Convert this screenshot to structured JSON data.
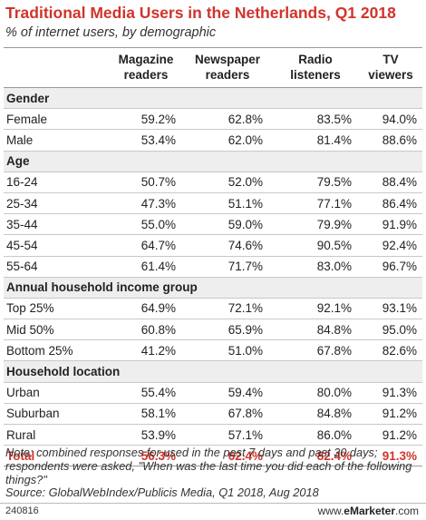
{
  "title": "Traditional Media Users in the Netherlands, Q1 2018",
  "subtitle": "% of internet users, by demographic",
  "columns": [
    [
      "Magazine",
      "readers"
    ],
    [
      "Newspaper",
      "readers"
    ],
    [
      "Radio",
      "listeners"
    ],
    [
      "TV",
      "viewers"
    ]
  ],
  "sections": [
    {
      "heading": "Gender",
      "rows": [
        {
          "label": "Female",
          "values": [
            "59.2%",
            "62.8%",
            "83.5%",
            "94.0%"
          ]
        },
        {
          "label": "Male",
          "values": [
            "53.4%",
            "62.0%",
            "81.4%",
            "88.6%"
          ]
        }
      ]
    },
    {
      "heading": "Age",
      "rows": [
        {
          "label": "16-24",
          "values": [
            "50.7%",
            "52.0%",
            "79.5%",
            "88.4%"
          ]
        },
        {
          "label": "25-34",
          "values": [
            "47.3%",
            "51.1%",
            "77.1%",
            "86.4%"
          ]
        },
        {
          "label": "35-44",
          "values": [
            "55.0%",
            "59.0%",
            "79.9%",
            "91.9%"
          ]
        },
        {
          "label": "45-54",
          "values": [
            "64.7%",
            "74.6%",
            "90.5%",
            "92.4%"
          ]
        },
        {
          "label": "55-64",
          "values": [
            "61.4%",
            "71.7%",
            "83.0%",
            "96.7%"
          ]
        }
      ]
    },
    {
      "heading": "Annual household income group",
      "rows": [
        {
          "label": "Top 25%",
          "values": [
            "64.9%",
            "72.1%",
            "92.1%",
            "93.1%"
          ]
        },
        {
          "label": "Mid 50%",
          "values": [
            "60.8%",
            "65.9%",
            "84.8%",
            "95.0%"
          ]
        },
        {
          "label": "Bottom 25%",
          "values": [
            "41.2%",
            "51.0%",
            "67.8%",
            "82.6%"
          ]
        }
      ]
    },
    {
      "heading": "Household location",
      "rows": [
        {
          "label": "Urban",
          "values": [
            "55.4%",
            "59.4%",
            "80.0%",
            "91.3%"
          ]
        },
        {
          "label": "Suburban",
          "values": [
            "58.1%",
            "67.8%",
            "84.8%",
            "91.2%"
          ]
        },
        {
          "label": "Rural",
          "values": [
            "53.9%",
            "57.1%",
            "86.0%",
            "91.2%"
          ]
        }
      ]
    }
  ],
  "total": {
    "label": "Total",
    "values": [
      "56.3%",
      "62.4%",
      "82.4%",
      "91.3%"
    ]
  },
  "note": "Note: combined responses for used in the past 7 days and past 30 days; respondents were asked, \"When was the last time you did each of the following things?\"",
  "source": "Source: GlobalWebIndex/Publicis Media, Q1 2018, Aug 2018",
  "chart_id": "240816",
  "brand": {
    "prefix": "www.",
    "name": "eMarketer",
    "suffix": ".com"
  },
  "colors": {
    "accent": "#d0342c",
    "section_bg": "#eeeeee",
    "text": "#222222"
  },
  "chart_data": {
    "type": "table",
    "title": "Traditional Media Users in the Netherlands, Q1 2018",
    "subtitle": "% of internet users, by demographic",
    "columns": [
      "Magazine readers",
      "Newspaper readers",
      "Radio listeners",
      "TV viewers"
    ],
    "rows": [
      {
        "group": "Gender",
        "label": "Female",
        "values": [
          59.2,
          62.8,
          83.5,
          94.0
        ]
      },
      {
        "group": "Gender",
        "label": "Male",
        "values": [
          53.4,
          62.0,
          81.4,
          88.6
        ]
      },
      {
        "group": "Age",
        "label": "16-24",
        "values": [
          50.7,
          52.0,
          79.5,
          88.4
        ]
      },
      {
        "group": "Age",
        "label": "25-34",
        "values": [
          47.3,
          51.1,
          77.1,
          86.4
        ]
      },
      {
        "group": "Age",
        "label": "35-44",
        "values": [
          55.0,
          59.0,
          79.9,
          91.9
        ]
      },
      {
        "group": "Age",
        "label": "45-54",
        "values": [
          64.7,
          74.6,
          90.5,
          92.4
        ]
      },
      {
        "group": "Age",
        "label": "55-64",
        "values": [
          61.4,
          71.7,
          83.0,
          96.7
        ]
      },
      {
        "group": "Annual household income group",
        "label": "Top 25%",
        "values": [
          64.9,
          72.1,
          92.1,
          93.1
        ]
      },
      {
        "group": "Annual household income group",
        "label": "Mid 50%",
        "values": [
          60.8,
          65.9,
          84.8,
          95.0
        ]
      },
      {
        "group": "Annual household income group",
        "label": "Bottom 25%",
        "values": [
          41.2,
          51.0,
          67.8,
          82.6
        ]
      },
      {
        "group": "Household location",
        "label": "Urban",
        "values": [
          55.4,
          59.4,
          80.0,
          91.3
        ]
      },
      {
        "group": "Household location",
        "label": "Suburban",
        "values": [
          58.1,
          67.8,
          84.8,
          91.2
        ]
      },
      {
        "group": "Household location",
        "label": "Rural",
        "values": [
          53.9,
          57.1,
          86.0,
          91.2
        ]
      },
      {
        "group": "",
        "label": "Total",
        "values": [
          56.3,
          62.4,
          82.4,
          91.3
        ]
      }
    ]
  }
}
